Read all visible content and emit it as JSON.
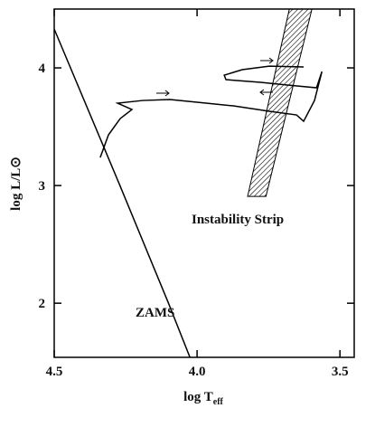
{
  "chart_data": {
    "type": "line",
    "x_label": {
      "main": "log T",
      "sub": "eff"
    },
    "y_label": "log L/L⊙",
    "annotations": [
      "ZAMS",
      "Instability Strip"
    ],
    "xlim": [
      4.5,
      3.45
    ],
    "ylim": [
      1.54,
      4.5
    ],
    "xticks": [
      4.5,
      {
        "value": 4,
        "label": "4.0"
      },
      3.5
    ],
    "yticks": [
      2,
      3,
      4
    ],
    "color": "#000000",
    "series": [
      {
        "x": [
          4.5,
          4.27,
          4.1,
          4.025
        ],
        "values": [
          4.33,
          3.0,
          2.0,
          1.54
        ]
      },
      {
        "x": [
          4.339,
          4.31,
          4.269,
          4.228,
          4.278,
          4.19,
          4.095,
          4.0,
          3.873,
          3.747,
          3.652,
          3.627,
          3.589,
          3.563,
          3.582,
          3.684,
          3.778,
          3.899,
          3.905,
          3.842,
          3.747,
          3.627
        ],
        "values": [
          3.238,
          3.431,
          3.569,
          3.646,
          3.7,
          3.723,
          3.731,
          3.708,
          3.677,
          3.631,
          3.6,
          3.546,
          3.723,
          3.969,
          3.831,
          3.854,
          3.877,
          3.9,
          3.938,
          3.985,
          4.015,
          4.008
        ]
      }
    ],
    "regions": [
      {
        "x": [
          3.823,
          3.759,
          3.598,
          3.677
        ],
        "values": [
          2.908,
          2.908,
          4.5,
          4.5
        ],
        "pattern": "hatch"
      }
    ]
  }
}
